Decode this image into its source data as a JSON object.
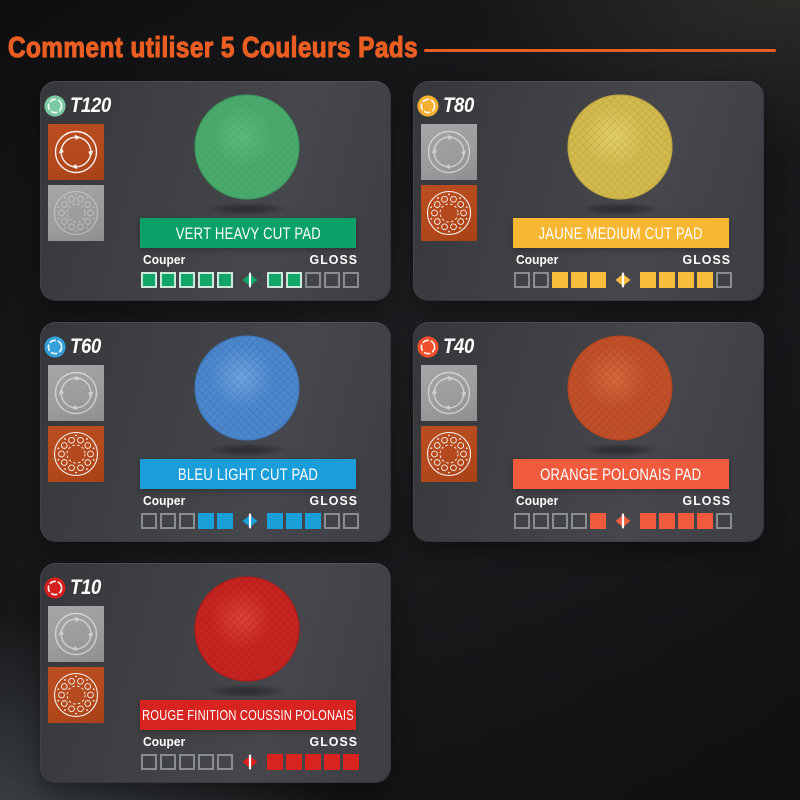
{
  "header": {
    "title": "Comment utiliser 5 Couleurs Pads",
    "accent_color": "#ea5e23"
  },
  "scale_labels": {
    "left": "Couper",
    "right": "GLOSS",
    "steps": 5
  },
  "cards": [
    {
      "code": "T120",
      "banner": "VERT HEAVY CUT PAD",
      "cut_filled": 5,
      "gloss_filled": 2,
      "thumb_swap": true,
      "colors": {
        "icon": "#7ccaa3",
        "banner": "#0ba168",
        "square": "#12a56a",
        "square_border": "#cde9db",
        "pad": "#49aa6c",
        "pad_light": "#5bb97d",
        "pad_dark": "#2f8b51",
        "pad_hatch": "#27763f",
        "hatch_opacity": 0.22
      }
    },
    {
      "code": "T80",
      "banner": "JAUNE MEDIUM CUT PAD",
      "cut_filled": 3,
      "gloss_filled": 4,
      "thumb_swap": false,
      "colors": {
        "icon": "#f3b033",
        "banner": "#f7b733",
        "square": "#f7bd3c",
        "square_border": "#f7bd3c",
        "pad": "#d2ba4d",
        "pad_light": "#e2cf6a",
        "pad_dark": "#b1963a",
        "pad_hatch": "#99802b",
        "hatch_opacity": 0.5
      }
    },
    {
      "code": "T60",
      "banner": "BLEU LIGHT CUT PAD",
      "cut_filled": 2,
      "gloss_filled": 3,
      "thumb_swap": false,
      "colors": {
        "icon": "#359fd9",
        "banner": "#1b9dd9",
        "square": "#1b9fd9",
        "square_border": "#1b9fd9",
        "pad": "#4c86cd",
        "pad_light": "#6ea5de",
        "pad_dark": "#3767aa",
        "pad_hatch": "#2b578f",
        "hatch_opacity": 0.5
      }
    },
    {
      "code": "T40",
      "banner": "ORANGE POLONAIS PAD",
      "cut_filled": 1,
      "gloss_filled": 4,
      "thumb_swap": false,
      "colors": {
        "icon": "#ee4f2d",
        "banner": "#f05a3d",
        "square": "#f05a3d",
        "square_border": "#f05a3d",
        "pad": "#c1502a",
        "pad_light": "#d46a3e",
        "pad_dark": "#9d3c1d",
        "pad_hatch": "#8a3315",
        "hatch_opacity": 0.5
      }
    },
    {
      "code": "T10",
      "banner": "ROUGE FINITION COUSSIN POLONAIS",
      "cut_filled": 0,
      "gloss_filled": 5,
      "thumb_swap": false,
      "colors": {
        "icon": "#d2201d",
        "banner": "#d82420",
        "square": "#d8231f",
        "square_border": "#d8231f",
        "pad": "#c62420",
        "pad_light": "#da423a",
        "pad_dark": "#a01512",
        "pad_hatch": "#8d100e",
        "hatch_opacity": 0.45
      }
    }
  ]
}
